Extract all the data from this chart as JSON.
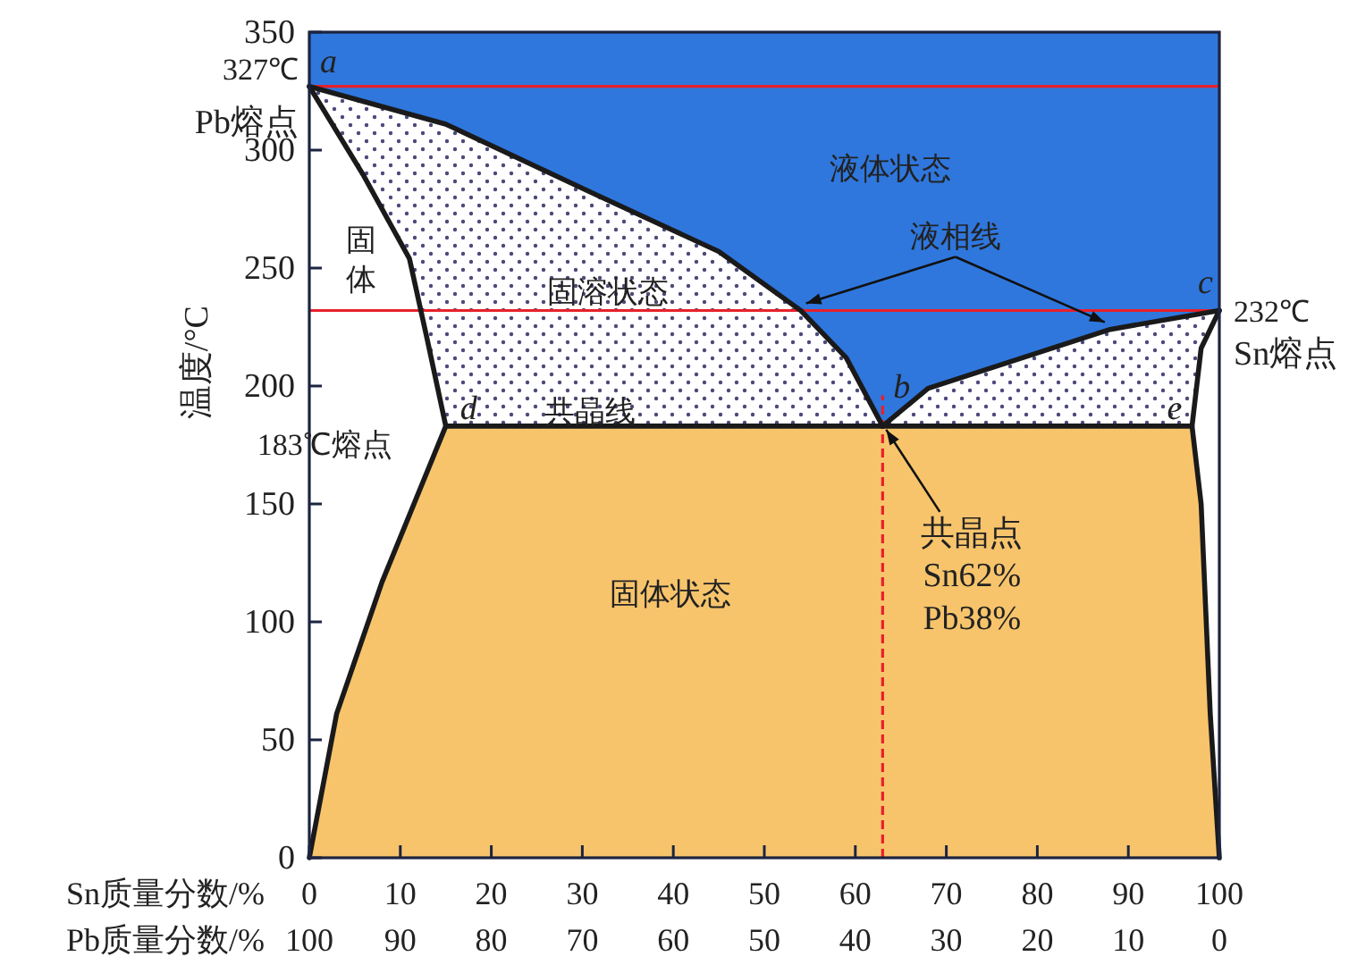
{
  "chart_data": {
    "type": "area",
    "ylabel": "温度/°C",
    "xlabel": "Sn质量分数/%",
    "x2label": "Pb质量分数/%",
    "xlim": [
      0,
      100
    ],
    "ylim": [
      0,
      350
    ],
    "xticks": [
      0,
      10,
      20,
      30,
      40,
      50,
      60,
      70,
      80,
      90,
      100
    ],
    "x2lim": [
      100,
      0
    ],
    "x2ticks": [
      100,
      90,
      80,
      70,
      60,
      50,
      40,
      30,
      20,
      10,
      0
    ],
    "yticks": [
      0,
      50,
      100,
      150,
      200,
      250,
      300,
      350
    ],
    "grid": false,
    "marker": "none",
    "line_style": "solid",
    "series": [
      {
        "color": "#4a4a7a",
        "x": [
          0,
          15,
          31,
          45,
          54,
          59,
          63
        ],
        "values": [
          327,
          311,
          282,
          257,
          232,
          212,
          183
        ]
      },
      {
        "color": "#4a4a7a",
        "x": [
          63,
          68,
          88,
          100
        ],
        "values": [
          183,
          199,
          224,
          232
        ]
      },
      {
        "color": "#ffffff",
        "x": [
          0,
          6,
          11,
          13,
          15
        ],
        "values": [
          327,
          289,
          254,
          219,
          183
        ]
      },
      {
        "color": "#ffffff",
        "x": [
          97,
          98,
          100
        ],
        "values": [
          183,
          216,
          232
        ]
      },
      {
        "color": "#f7c46c",
        "x": [
          0,
          3,
          8,
          15,
          97,
          98,
          99,
          100
        ],
        "values": [
          0,
          61,
          117,
          183,
          183,
          150,
          61,
          0
        ]
      }
    ],
    "ref_lines": [
      {
        "axis": "y",
        "value": 327,
        "label": "327℃",
        "color": "#e8202a"
      },
      {
        "axis": "y",
        "value": 232,
        "label": "232℃",
        "color": "#e8202a"
      },
      {
        "axis": "x",
        "value": 63,
        "color": "#e8202a",
        "line_style": "dashed"
      }
    ],
    "annotations": [
      "液体状态",
      {
        "text": "液相线",
        "x": 54,
        "y": 232
      },
      "固溶状态",
      "固体",
      "共晶线",
      "固体状态",
      {
        "text": "共晶点\nSn62%\nPb38%",
        "x": 63,
        "y": 183
      },
      {
        "text": "Pb熔点",
        "x": 0,
        "y": 327
      },
      {
        "text": "Sn熔点",
        "x": 100,
        "y": 232
      },
      {
        "text": "183℃熔点",
        "x": 15,
        "y": 183
      },
      {
        "text": "a",
        "x": 0,
        "y": 327
      },
      {
        "text": "b",
        "x": 63,
        "y": 183
      },
      {
        "text": "c",
        "x": 100,
        "y": 232
      },
      {
        "text": "d",
        "x": 15,
        "y": 183
      },
      {
        "text": "e",
        "x": 97,
        "y": 183
      }
    ]
  }
}
